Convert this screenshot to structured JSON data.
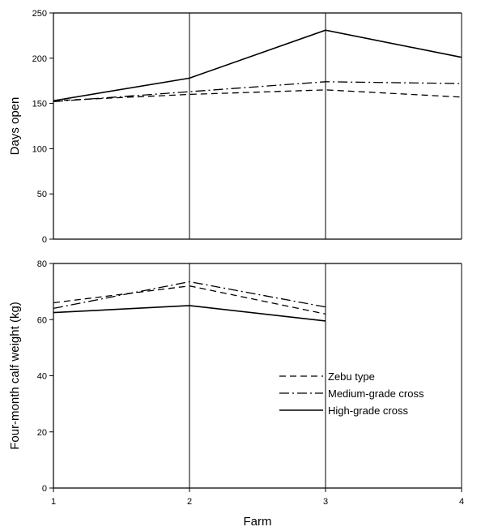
{
  "colors": {
    "ink": "#000000",
    "background": "#ffffff"
  },
  "chart_data": [
    {
      "type": "line",
      "panel": "top",
      "title": "",
      "xlabel": "",
      "ylabel": "Days open",
      "x": [
        1,
        2,
        3,
        4
      ],
      "xlim": [
        1,
        4
      ],
      "ylim": [
        0,
        250
      ],
      "yticks": [
        0,
        50,
        100,
        150,
        200,
        250
      ],
      "grid": "vertical lines at each farm",
      "series": [
        {
          "name": "Zebu type",
          "style": "dashed",
          "values": [
            153,
            160,
            165,
            157
          ]
        },
        {
          "name": "Medium-grade cross",
          "style": "dash-dot",
          "values": [
            152,
            163,
            174,
            172
          ]
        },
        {
          "name": "High-grade cross",
          "style": "solid",
          "values": [
            153,
            178,
            231,
            201
          ]
        }
      ]
    },
    {
      "type": "line",
      "panel": "bottom",
      "title": "",
      "xlabel": "Farm",
      "ylabel": "Four-month calf weight (kg)",
      "x": [
        1,
        2,
        3,
        4
      ],
      "xlim": [
        1,
        4
      ],
      "xticks": [
        1,
        2,
        3,
        4
      ],
      "ylim": [
        0,
        80
      ],
      "yticks": [
        0,
        20,
        40,
        60,
        80
      ],
      "grid": "vertical lines at each farm",
      "legend_position": "right",
      "series": [
        {
          "name": "Zebu type",
          "style": "dashed",
          "values": [
            66,
            72,
            62,
            null
          ]
        },
        {
          "name": "Medium-grade cross",
          "style": "dash-dot",
          "values": [
            64,
            73.5,
            64.5,
            null
          ]
        },
        {
          "name": "High-grade cross",
          "style": "solid",
          "values": [
            62.5,
            65,
            59.5,
            null
          ]
        }
      ]
    }
  ]
}
